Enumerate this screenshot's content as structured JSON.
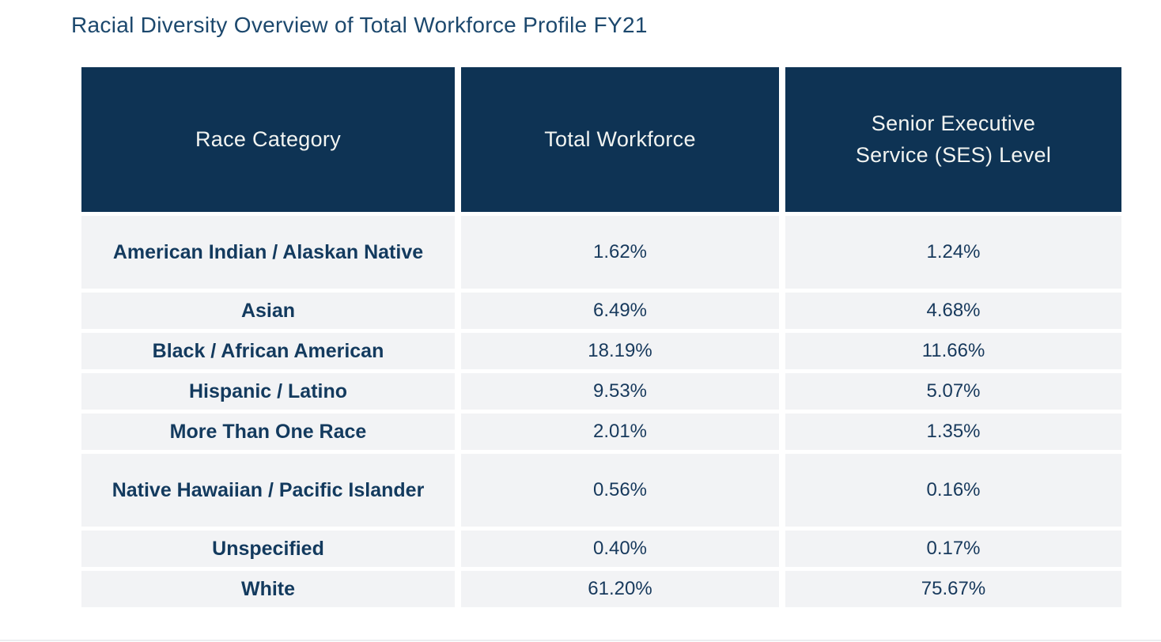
{
  "page": {
    "title": "Racial Diversity Overview of Total Workforce Profile FY21"
  },
  "table": {
    "columns": [
      "Race Category",
      "Total Workforce",
      "Senior Executive Service (SES) Level"
    ],
    "rows": [
      {
        "category": "American Indian / Alaskan Native",
        "total_workforce": "1.62%",
        "ses_level": "1.24%"
      },
      {
        "category": "Asian",
        "total_workforce": "6.49%",
        "ses_level": "4.68%"
      },
      {
        "category": "Black / African American",
        "total_workforce": "18.19%",
        "ses_level": "11.66%"
      },
      {
        "category": "Hispanic / Latino",
        "total_workforce": "9.53%",
        "ses_level": "5.07%"
      },
      {
        "category": "More Than One Race",
        "total_workforce": "2.01%",
        "ses_level": "1.35%"
      },
      {
        "category": "Native Hawaiian / Pacific Islander",
        "total_workforce": "0.56%",
        "ses_level": "0.16%"
      },
      {
        "category": "Unspecified",
        "total_workforce": "0.40%",
        "ses_level": "0.17%"
      },
      {
        "category": "White",
        "total_workforce": "61.20%",
        "ses_level": "75.67%"
      }
    ]
  },
  "colors": {
    "header_background": "#0e3354",
    "header_text": "#f2f4f1",
    "row_background": "#f2f3f5",
    "category_text": "#133a5e",
    "value_text": "#17395c",
    "title_text": "#1c486d"
  },
  "chart_data": {
    "type": "table",
    "title": "Racial Diversity Overview of Total Workforce Profile FY21",
    "columns": [
      "Race Category",
      "Total Workforce",
      "Senior Executive Service (SES) Level"
    ],
    "rows": [
      [
        "American Indian / Alaskan Native",
        1.62,
        1.24
      ],
      [
        "Asian",
        6.49,
        4.68
      ],
      [
        "Black / African American",
        18.19,
        11.66
      ],
      [
        "Hispanic / Latino",
        9.53,
        5.07
      ],
      [
        "More Than One Race",
        2.01,
        1.35
      ],
      [
        "Native Hawaiian / Pacific Islander",
        0.56,
        0.16
      ],
      [
        "Unspecified",
        0.4,
        0.17
      ],
      [
        "White",
        61.2,
        75.67
      ]
    ],
    "units": "percent"
  }
}
